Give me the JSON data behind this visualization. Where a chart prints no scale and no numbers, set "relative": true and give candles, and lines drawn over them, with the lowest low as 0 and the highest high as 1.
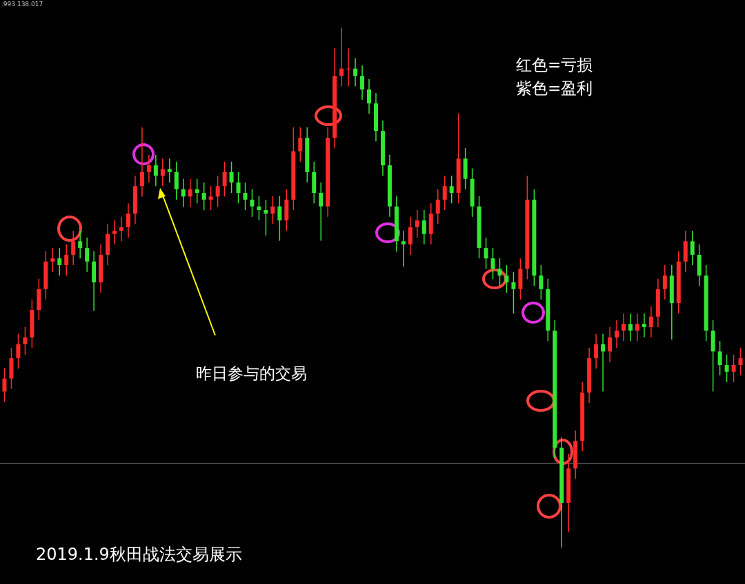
{
  "chart_data": {
    "type": "candlestick",
    "relative": true,
    "categories": [
      null,
      null,
      null,
      null,
      null,
      null,
      null,
      null,
      null,
      null,
      null,
      null,
      null,
      null,
      null,
      null,
      null,
      null,
      null,
      null,
      null,
      null,
      null,
      null,
      null,
      null,
      null,
      null,
      null,
      null,
      null,
      null,
      null,
      null,
      null,
      null,
      null,
      null,
      null,
      null,
      null,
      null,
      null,
      null,
      null,
      null,
      null,
      null,
      null,
      null,
      null,
      null,
      null,
      null,
      null,
      null,
      null,
      null,
      null,
      null,
      null,
      null,
      null,
      null,
      null,
      null,
      null,
      null,
      null,
      null,
      null,
      null,
      null,
      null,
      null,
      null,
      null,
      null,
      null,
      null,
      null,
      null,
      null,
      null,
      null,
      null,
      null,
      null,
      null,
      null,
      null,
      null,
      null,
      null,
      null,
      null,
      null,
      null,
      null,
      null,
      null,
      null,
      null,
      null,
      null,
      null,
      null,
      null
    ],
    "ohlc": [
      [
        0.3,
        0.345,
        0.28,
        0.325
      ],
      [
        0.325,
        0.384,
        0.305,
        0.364
      ],
      [
        0.364,
        0.411,
        0.344,
        0.391
      ],
      [
        0.391,
        0.424,
        0.371,
        0.404
      ],
      [
        0.404,
        0.477,
        0.384,
        0.457
      ],
      [
        0.457,
        0.517,
        0.437,
        0.497
      ],
      [
        0.497,
        0.57,
        0.477,
        0.55
      ],
      [
        0.55,
        0.576,
        0.53,
        0.556
      ],
      [
        0.556,
        0.576,
        0.523,
        0.543
      ],
      [
        0.543,
        0.583,
        0.523,
        0.563
      ],
      [
        0.563,
        0.609,
        0.543,
        0.589
      ],
      [
        0.589,
        0.609,
        0.556,
        0.576
      ],
      [
        0.576,
        0.596,
        0.53,
        0.55
      ],
      [
        0.55,
        0.57,
        0.455,
        0.51
      ],
      [
        0.51,
        0.583,
        0.49,
        0.563
      ],
      [
        0.563,
        0.623,
        0.543,
        0.603
      ],
      [
        0.603,
        0.629,
        0.583,
        0.609
      ],
      [
        0.609,
        0.636,
        0.589,
        0.616
      ],
      [
        0.616,
        0.662,
        0.596,
        0.642
      ],
      [
        0.642,
        0.715,
        0.622,
        0.695
      ],
      [
        0.695,
        0.808,
        0.675,
        0.722
      ],
      [
        0.722,
        0.755,
        0.702,
        0.735
      ],
      [
        0.735,
        0.755,
        0.695,
        0.715
      ],
      [
        0.715,
        0.748,
        0.695,
        0.728
      ],
      [
        0.728,
        0.748,
        0.702,
        0.722
      ],
      [
        0.722,
        0.742,
        0.669,
        0.689
      ],
      [
        0.689,
        0.709,
        0.655,
        0.675
      ],
      [
        0.675,
        0.709,
        0.655,
        0.689
      ],
      [
        0.689,
        0.709,
        0.662,
        0.682
      ],
      [
        0.682,
        0.702,
        0.649,
        0.669
      ],
      [
        0.669,
        0.695,
        0.649,
        0.675
      ],
      [
        0.675,
        0.715,
        0.655,
        0.695
      ],
      [
        0.695,
        0.742,
        0.675,
        0.722
      ],
      [
        0.722,
        0.742,
        0.682,
        0.702
      ],
      [
        0.702,
        0.722,
        0.662,
        0.682
      ],
      [
        0.682,
        0.702,
        0.649,
        0.669
      ],
      [
        0.669,
        0.689,
        0.636,
        0.656
      ],
      [
        0.656,
        0.676,
        0.629,
        0.649
      ],
      [
        0.649,
        0.669,
        0.6,
        0.642
      ],
      [
        0.642,
        0.676,
        0.622,
        0.656
      ],
      [
        0.656,
        0.676,
        0.59,
        0.629
      ],
      [
        0.629,
        0.689,
        0.609,
        0.669
      ],
      [
        0.669,
        0.808,
        0.649,
        0.762
      ],
      [
        0.762,
        0.808,
        0.742,
        0.788
      ],
      [
        0.788,
        0.808,
        0.702,
        0.722
      ],
      [
        0.722,
        0.742,
        0.662,
        0.682
      ],
      [
        0.682,
        0.702,
        0.59,
        0.656
      ],
      [
        0.656,
        0.808,
        0.636,
        0.788
      ],
      [
        0.788,
        0.96,
        0.768,
        0.907
      ],
      [
        0.907,
        1.0,
        0.887,
        0.921
      ],
      [
        0.921,
        0.96,
        0.887,
        0.921
      ],
      [
        0.921,
        0.941,
        0.887,
        0.907
      ],
      [
        0.907,
        0.927,
        0.861,
        0.881
      ],
      [
        0.881,
        0.901,
        0.834,
        0.854
      ],
      [
        0.854,
        0.874,
        0.781,
        0.801
      ],
      [
        0.801,
        0.821,
        0.715,
        0.735
      ],
      [
        0.735,
        0.755,
        0.636,
        0.656
      ],
      [
        0.656,
        0.676,
        0.569,
        0.589
      ],
      [
        0.589,
        0.609,
        0.54,
        0.583
      ],
      [
        0.583,
        0.636,
        0.563,
        0.616
      ],
      [
        0.616,
        0.649,
        0.596,
        0.629
      ],
      [
        0.629,
        0.649,
        0.583,
        0.603
      ],
      [
        0.603,
        0.662,
        0.583,
        0.642
      ],
      [
        0.642,
        0.689,
        0.622,
        0.669
      ],
      [
        0.669,
        0.715,
        0.649,
        0.695
      ],
      [
        0.695,
        0.715,
        0.662,
        0.682
      ],
      [
        0.682,
        0.835,
        0.662,
        0.748
      ],
      [
        0.748,
        0.768,
        0.689,
        0.709
      ],
      [
        0.709,
        0.729,
        0.636,
        0.656
      ],
      [
        0.656,
        0.676,
        0.556,
        0.576
      ],
      [
        0.576,
        0.596,
        0.536,
        0.556
      ],
      [
        0.556,
        0.576,
        0.516,
        0.536
      ],
      [
        0.536,
        0.556,
        0.503,
        0.523
      ],
      [
        0.523,
        0.543,
        0.49,
        0.51
      ],
      [
        0.51,
        0.53,
        0.45,
        0.497
      ],
      [
        0.497,
        0.556,
        0.477,
        0.536
      ],
      [
        0.536,
        0.715,
        0.516,
        0.669
      ],
      [
        0.669,
        0.689,
        0.503,
        0.523
      ],
      [
        0.523,
        0.543,
        0.477,
        0.497
      ],
      [
        0.497,
        0.517,
        0.397,
        0.417
      ],
      [
        0.417,
        0.437,
        0.172,
        0.192
      ],
      [
        0.192,
        0.212,
        0.0,
        0.086
      ],
      [
        0.086,
        0.18,
        0.03,
        0.152
      ],
      [
        0.152,
        0.225,
        0.132,
        0.205
      ],
      [
        0.205,
        0.318,
        0.185,
        0.298
      ],
      [
        0.298,
        0.384,
        0.278,
        0.364
      ],
      [
        0.364,
        0.411,
        0.344,
        0.391
      ],
      [
        0.391,
        0.411,
        0.3,
        0.377
      ],
      [
        0.377,
        0.424,
        0.357,
        0.404
      ],
      [
        0.404,
        0.437,
        0.384,
        0.417
      ],
      [
        0.417,
        0.45,
        0.397,
        0.43
      ],
      [
        0.43,
        0.45,
        0.397,
        0.417
      ],
      [
        0.417,
        0.45,
        0.397,
        0.43
      ],
      [
        0.43,
        0.45,
        0.404,
        0.424
      ],
      [
        0.424,
        0.464,
        0.404,
        0.444
      ],
      [
        0.444,
        0.517,
        0.424,
        0.497
      ],
      [
        0.497,
        0.543,
        0.477,
        0.523
      ],
      [
        0.523,
        0.543,
        0.4,
        0.47
      ],
      [
        0.47,
        0.57,
        0.45,
        0.55
      ],
      [
        0.55,
        0.609,
        0.53,
        0.589
      ],
      [
        0.589,
        0.609,
        0.543,
        0.563
      ],
      [
        0.563,
        0.583,
        0.503,
        0.523
      ],
      [
        0.523,
        0.543,
        0.397,
        0.417
      ],
      [
        0.417,
        0.437,
        0.3,
        0.377
      ],
      [
        0.377,
        0.397,
        0.331,
        0.351
      ],
      [
        0.351,
        0.371,
        0.318,
        0.338
      ],
      [
        0.338,
        0.371,
        0.318,
        0.351
      ],
      [
        0.351,
        0.384,
        0.331,
        0.364
      ]
    ],
    "colors": [
      "#ff2a2a",
      "#ff2a2a",
      "#ff2a2a",
      "#ff2a2a",
      "#ff2a2a",
      "#ff2a2a",
      "#ff2a2a",
      "#ff2a2a",
      "#33e633",
      "#ff2a2a",
      "#ff2a2a",
      "#33e633",
      "#33e633",
      "#33e633",
      "#ff2a2a",
      "#ff2a2a",
      "#ff2a2a",
      "#ff2a2a",
      "#ff2a2a",
      "#ff2a2a",
      "#ff2a2a",
      "#ff2a2a",
      "#33e633",
      "#ff2a2a",
      "#33e633",
      "#33e633",
      "#33e633",
      "#ff2a2a",
      "#33e633",
      "#33e633",
      "#ff2a2a",
      "#ff2a2a",
      "#ff2a2a",
      "#33e633",
      "#33e633",
      "#33e633",
      "#33e633",
      "#33e633",
      "#33e633",
      "#ff2a2a",
      "#33e633",
      "#ff2a2a",
      "#ff2a2a",
      "#ff2a2a",
      "#33e633",
      "#33e633",
      "#33e633",
      "#ff2a2a",
      "#ff2a2a",
      "#ff2a2a",
      "#ff2a2a",
      "#33e633",
      "#33e633",
      "#33e633",
      "#33e633",
      "#33e633",
      "#33e633",
      "#33e633",
      "#33e633",
      "#ff2a2a",
      "#ff2a2a",
      "#33e633",
      "#ff2a2a",
      "#ff2a2a",
      "#ff2a2a",
      "#33e633",
      "#ff2a2a",
      "#33e633",
      "#33e633",
      "#33e633",
      "#33e633",
      "#33e633",
      "#33e633",
      "#33e633",
      "#33e633",
      "#ff2a2a",
      "#ff2a2a",
      "#33e633",
      "#33e633",
      "#33e633",
      "#33e633",
      "#33e633",
      "#ff2a2a",
      "#ff2a2a",
      "#ff2a2a",
      "#ff2a2a",
      "#ff2a2a",
      "#33e633",
      "#ff2a2a",
      "#ff2a2a",
      "#ff2a2a",
      "#33e633",
      "#ff2a2a",
      "#33e633",
      "#ff2a2a",
      "#ff2a2a",
      "#ff2a2a",
      "#33e633",
      "#ff2a2a",
      "#ff2a2a",
      "#33e633",
      "#33e633",
      "#33e633",
      "#33e633",
      "#33e633",
      "#33e633",
      "#ff2a2a",
      "#ff2a2a"
    ],
    "ref_lines": [
      {
        "axis": "y",
        "value": 0.162,
        "color": "#8a8a99"
      }
    ],
    "annotations": [
      ".993 138.017",
      "红色=亏损",
      "紫色=盈利",
      "昨日参与的交易",
      "2019.1.9秋田战法交易展示"
    ]
  }
}
